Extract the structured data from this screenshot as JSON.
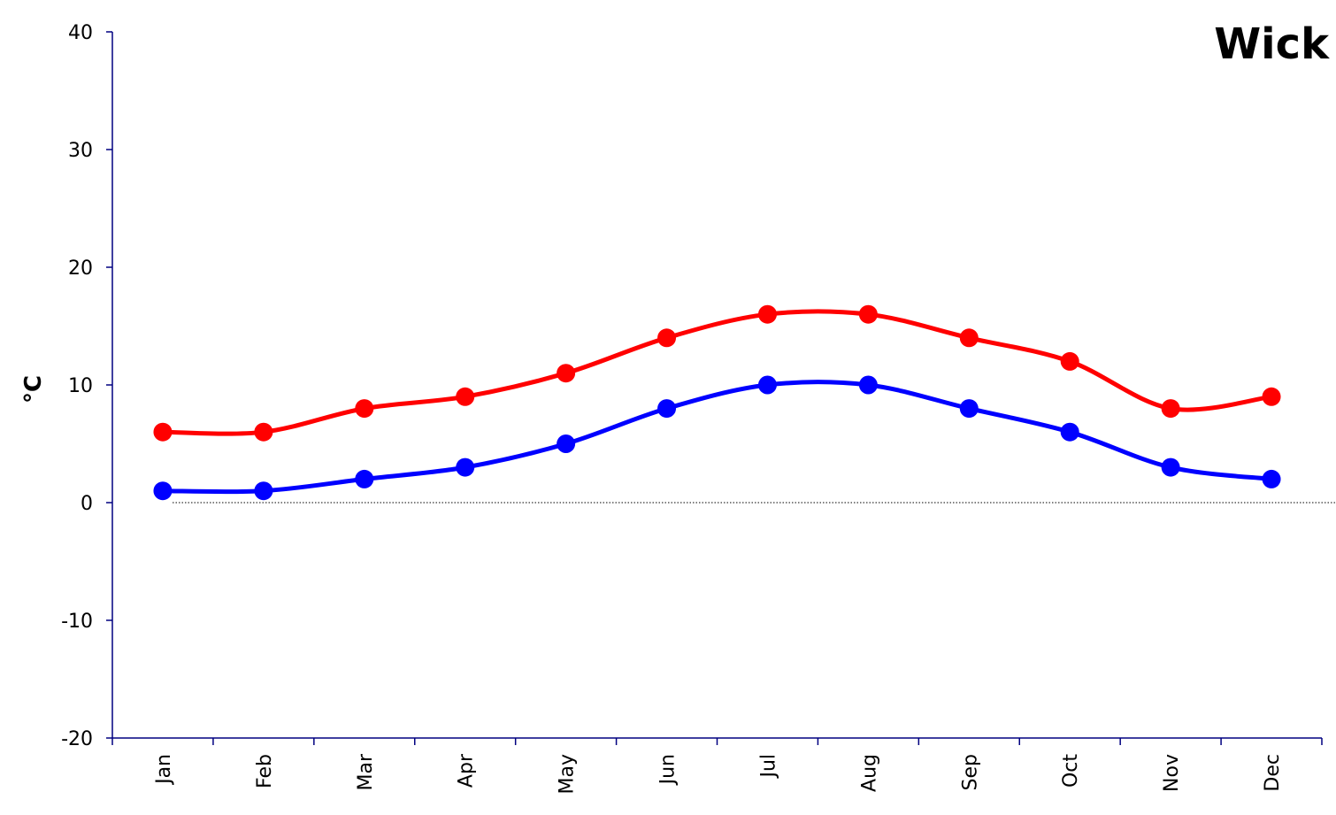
{
  "chart_data": {
    "type": "line",
    "title": "Wick",
    "ylabel": "°C",
    "xlabel": "",
    "categories": [
      "Jan",
      "Feb",
      "Mar",
      "Apr",
      "May",
      "Jun",
      "Jul",
      "Aug",
      "Sep",
      "Oct",
      "Nov",
      "Dec"
    ],
    "ylim": [
      -20,
      40
    ],
    "yticks": [
      -20,
      -10,
      0,
      10,
      20,
      30,
      40
    ],
    "grid": false,
    "zero_line": true,
    "series": [
      {
        "color": "#ff0000",
        "values": [
          6,
          6,
          8,
          9,
          11,
          14,
          16,
          16,
          14,
          12,
          8,
          9
        ]
      },
      {
        "color": "#0000ff",
        "values": [
          1,
          1,
          2,
          3,
          5,
          8,
          10,
          10,
          8,
          6,
          3,
          2
        ]
      }
    ]
  }
}
